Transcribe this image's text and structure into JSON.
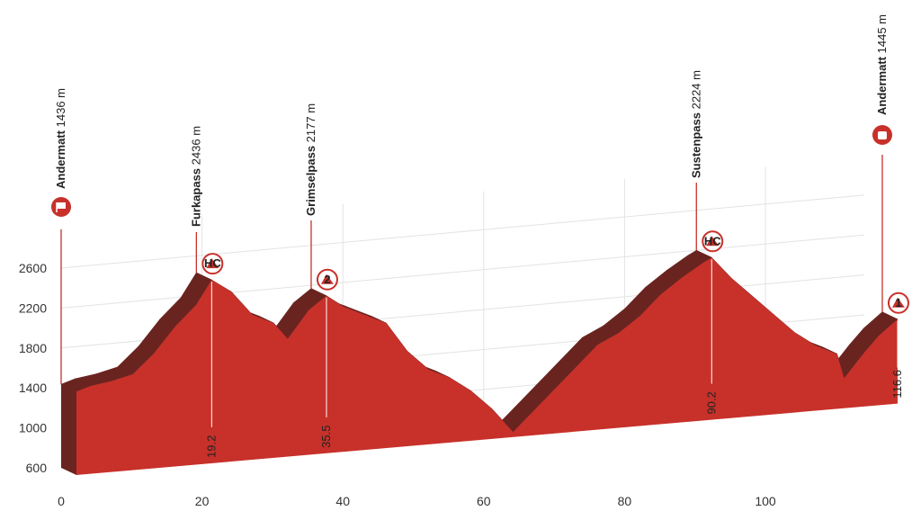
{
  "chart_data": {
    "type": "elevation-profile",
    "x": [
      0,
      2,
      5,
      8,
      11,
      14,
      17,
      19.2,
      22,
      25,
      28,
      30,
      33,
      35.5,
      38,
      41,
      44,
      47,
      50,
      53,
      56,
      59,
      62,
      65,
      68,
      71,
      74,
      77,
      80,
      83,
      86,
      89,
      90.2,
      93,
      96,
      99,
      102,
      105,
      108,
      109,
      112,
      114,
      116.6
    ],
    "values": [
      1436,
      1480,
      1510,
      1560,
      1750,
      2000,
      2200,
      2436,
      2300,
      2050,
      1950,
      1780,
      2050,
      2177,
      2050,
      1950,
      1850,
      1550,
      1350,
      1250,
      1100,
      900,
      650,
      850,
      1050,
      1250,
      1450,
      1550,
      1700,
      1900,
      2050,
      2180,
      2224,
      2000,
      1800,
      1600,
      1400,
      1250,
      1150,
      900,
      1150,
      1300,
      1445
    ],
    "color": "#c7312a",
    "side_color": "#6a2420",
    "xlim": [
      0,
      116.6
    ],
    "ylim": [
      600,
      2600
    ],
    "xticks": [
      0,
      20,
      40,
      60,
      80,
      100
    ],
    "yticks": [
      600,
      1000,
      1400,
      1800,
      2200,
      2600
    ],
    "grid": true,
    "places": [
      {
        "name": "Andermatt",
        "altitude": "1436 m",
        "km": 0
      },
      {
        "name": "Furkapass",
        "altitude": "2436 m",
        "km": 19.2,
        "category": "HC"
      },
      {
        "name": "Grimselpass",
        "altitude": "2177 m",
        "km": 35.5,
        "category": "2"
      },
      {
        "name": "Sustenpass",
        "altitude": "2224 m",
        "km": 90.2,
        "category": "HC"
      },
      {
        "name": "Andermatt",
        "altitude": "1445 m",
        "km": 116.6,
        "category": "1"
      }
    ]
  }
}
